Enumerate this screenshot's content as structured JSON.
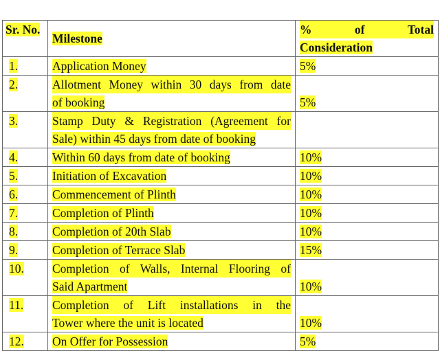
{
  "table": {
    "headers": {
      "sr": "Sr. No.",
      "milestone": "Milestone",
      "pct_line1": [
        "%",
        "of",
        "Total"
      ],
      "pct_line2": "Consideration"
    },
    "rows": [
      {
        "sr": "1.",
        "milestone": [
          "Application Money"
        ],
        "pct": "5%"
      },
      {
        "sr": "2.",
        "milestone": [
          "Allotment Money within 30 days from date",
          "of booking"
        ],
        "pct": "5%"
      },
      {
        "sr": "3.",
        "milestone": [
          "Stamp Duty & Registration (Agreement for",
          "Sale) within 45 days from date of booking"
        ],
        "pct": ""
      },
      {
        "sr": "4.",
        "milestone": [
          "Within 60 days from date of booking"
        ],
        "pct": "10%"
      },
      {
        "sr": "5.",
        "milestone": [
          "Initiation of Excavation"
        ],
        "pct": "10%"
      },
      {
        "sr": "6.",
        "milestone": [
          "Commencement of Plinth"
        ],
        "pct": "10%"
      },
      {
        "sr": "7.",
        "milestone": [
          "Completion of Plinth"
        ],
        "pct": "10%"
      },
      {
        "sr": "8.",
        "milestone": [
          "Completion of 20th Slab"
        ],
        "pct": "10%"
      },
      {
        "sr": "9.",
        "milestone": [
          "Completion of Terrace Slab"
        ],
        "pct": "15%"
      },
      {
        "sr": "10.",
        "milestone": [
          "Completion of Walls, Internal Flooring of",
          "Said Apartment"
        ],
        "pct": "10%"
      },
      {
        "sr": "11.",
        "milestone": [
          "Completion of Lift installations in the",
          "Tower where the unit is located"
        ],
        "pct": "10%"
      },
      {
        "sr": "12.",
        "milestone": [
          "On Offer for Possession"
        ],
        "pct": "5%"
      }
    ]
  },
  "colors": {
    "highlight": "#ffff33",
    "border": "#666666"
  }
}
